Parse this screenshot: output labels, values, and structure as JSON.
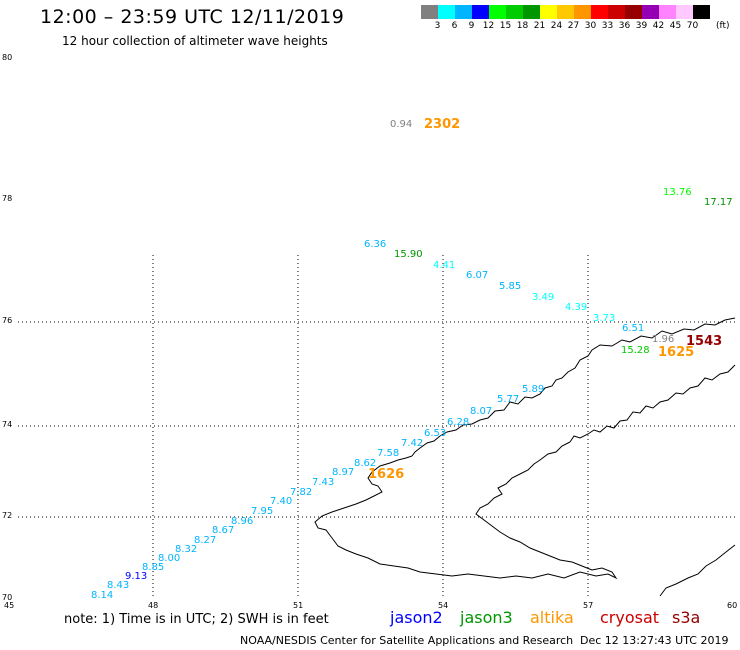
{
  "header": {
    "title": "12:00 – 23:59 UTC 12/11/2019",
    "subtitle": "12 hour collection of altimeter wave heights"
  },
  "legend": {
    "unit": "(ft)",
    "colors": [
      "#808080",
      "#00ffff",
      "#00b4ff",
      "#0000ff",
      "#00ff00",
      "#00cc00",
      "#009600",
      "#ffff00",
      "#ffc800",
      "#ff9600",
      "#ff0000",
      "#cc0000",
      "#960000",
      "#9600b4",
      "#ff82ff",
      "#ffc8ff",
      "#000000"
    ],
    "labels": [
      "3",
      "6",
      "9",
      "12",
      "15",
      "18",
      "21",
      "24",
      "27",
      "30",
      "33",
      "36",
      "39",
      "42",
      "45",
      "70"
    ]
  },
  "axes": {
    "lat_ticks": [
      "80",
      "78",
      "76",
      "74",
      "72",
      "70"
    ],
    "lon_ticks": [
      "45",
      "48",
      "51",
      "54",
      "57",
      "60"
    ]
  },
  "observations": [
    {
      "text": "0.94",
      "color": "#808080"
    },
    {
      "text": "2302",
      "color": "#ff9600",
      "bold": true
    },
    {
      "text": "13.76",
      "color": "#00ff00"
    },
    {
      "text": "17.17",
      "color": "#009600"
    },
    {
      "text": "6.36",
      "color": "#00b4ff"
    },
    {
      "text": "15.90",
      "color": "#009600"
    },
    {
      "text": "4.41",
      "color": "#00ffff"
    },
    {
      "text": "6.07",
      "color": "#00b4ff"
    },
    {
      "text": "5.85",
      "color": "#00b4ff"
    },
    {
      "text": "3.49",
      "color": "#00ffff"
    },
    {
      "text": "4.39",
      "color": "#00ffff"
    },
    {
      "text": "3.73",
      "color": "#00ffff"
    },
    {
      "text": "6.51",
      "color": "#00b4ff"
    },
    {
      "text": "1.96",
      "color": "#808080"
    },
    {
      "text": "1543",
      "color": "#960000",
      "bold": true
    },
    {
      "text": "15.28",
      "color": "#00cc00"
    },
    {
      "text": "1625",
      "color": "#ff9600",
      "bold": true
    },
    {
      "text": "5.89",
      "color": "#00b4ff"
    },
    {
      "text": "5.77",
      "color": "#00b4ff"
    },
    {
      "text": "8.07",
      "color": "#00b4ff"
    },
    {
      "text": "6.28",
      "color": "#00b4ff"
    },
    {
      "text": "6.53",
      "color": "#00b4ff"
    },
    {
      "text": "7.42",
      "color": "#00b4ff"
    },
    {
      "text": "7.58",
      "color": "#00b4ff"
    },
    {
      "text": "8.62",
      "color": "#00b4ff"
    },
    {
      "text": "8.97",
      "color": "#00b4ff"
    },
    {
      "text": "1626",
      "color": "#ff9600",
      "bold": true
    },
    {
      "text": "7.43",
      "color": "#00b4ff"
    },
    {
      "text": "7.82",
      "color": "#00b4ff"
    },
    {
      "text": "7.40",
      "color": "#00b4ff"
    },
    {
      "text": "7.95",
      "color": "#00b4ff"
    },
    {
      "text": "8.96",
      "color": "#00b4ff"
    },
    {
      "text": "8.67",
      "color": "#00b4ff"
    },
    {
      "text": "8.27",
      "color": "#00b4ff"
    },
    {
      "text": "8.32",
      "color": "#00b4ff"
    },
    {
      "text": "8.00",
      "color": "#00b4ff"
    },
    {
      "text": "8.85",
      "color": "#00b4ff"
    },
    {
      "text": "9.13",
      "color": "#0000ff"
    },
    {
      "text": "8.43",
      "color": "#00b4ff"
    },
    {
      "text": "8.14",
      "color": "#00b4ff"
    }
  ],
  "footer": {
    "note": "note:  1) Time is in UTC;  2) SWH is in feet",
    "satellites": [
      {
        "name": "jason2",
        "color": "#0000ff"
      },
      {
        "name": "jason3",
        "color": "#009600"
      },
      {
        "name": "altika",
        "color": "#ff9600"
      },
      {
        "name": "cryosat",
        "color": "#cc0000"
      },
      {
        "name": "s3a",
        "color": "#960000"
      }
    ],
    "credit": "NOAA/NESDIS Center for Satellite Applications and Research",
    "timestamp": "Dec 12 13:27:43 UTC 2019"
  }
}
